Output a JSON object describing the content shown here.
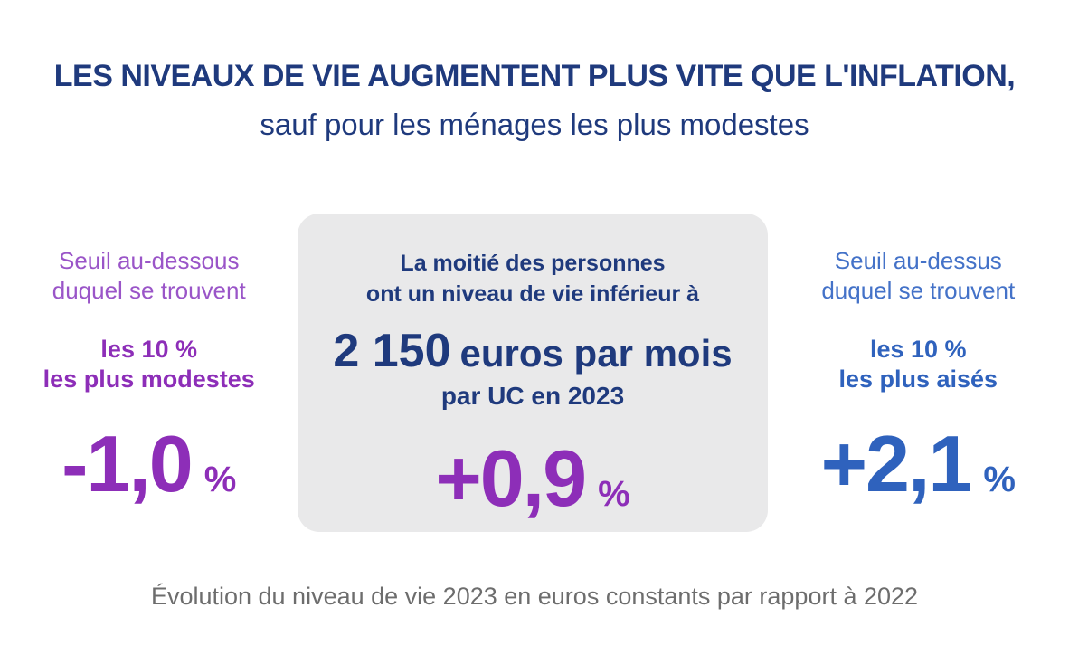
{
  "header": {
    "title": "LES NIVEAUX DE VIE AUGMENTENT PLUS VITE QUE L'INFLATION,",
    "subtitle": "sauf pour les ménages les plus modestes"
  },
  "panels": {
    "left": {
      "label_line1": "Seuil au-dessous",
      "label_line2": "duquel se trouvent",
      "bold_line1": "les 10 %",
      "bold_line2": "les plus modestes",
      "value": "-1,0",
      "unit": "%"
    },
    "center": {
      "line1": "La moitié des personnes",
      "line2": "ont un niveau de vie inférieur à",
      "amount": "2 150",
      "amount_suffix": "euros par mois",
      "uc_line": "par UC en 2023",
      "value": "+0,9",
      "unit": "%"
    },
    "right": {
      "label_line1": "Seuil au-dessus",
      "label_line2": "duquel se trouvent",
      "bold_line1": "les 10 %",
      "bold_line2": "les plus aisés",
      "value": "+2,1",
      "unit": "%"
    }
  },
  "footer": {
    "caption": "Évolution du niveau de vie 2023 en euros constants par rapport à 2022"
  },
  "colors": {
    "navy": "#1f3a7d",
    "purple": "#8d2eb8",
    "purple_light": "#9a55c8",
    "blue": "#2f62bd",
    "blue_light": "#4472c8",
    "gray_box": "#e9e9ea",
    "caption_gray": "#6d6d6d",
    "page_bg": "#ffffff"
  },
  "chart_data": {
    "type": "table",
    "title": "LES NIVEAUX DE VIE AUGMENTENT PLUS VITE QUE L'INFLATION, sauf pour les ménages les plus modestes",
    "categories": [
      "Seuil au-dessous duquel se trouvent les 10 % les plus modestes",
      "Niveau de vie médian (la moitié des personnes ont un niveau de vie inférieur à 2 150 euros par mois par UC en 2023)",
      "Seuil au-dessus duquel se trouvent les 10 % les plus aisés"
    ],
    "values": [
      -1.0,
      0.9,
      2.1
    ],
    "unit": "%",
    "median_threshold_euros_par_mois_par_uc_2023": 2150,
    "note": "Évolution du niveau de vie 2023 en euros constants par rapport à 2022"
  }
}
